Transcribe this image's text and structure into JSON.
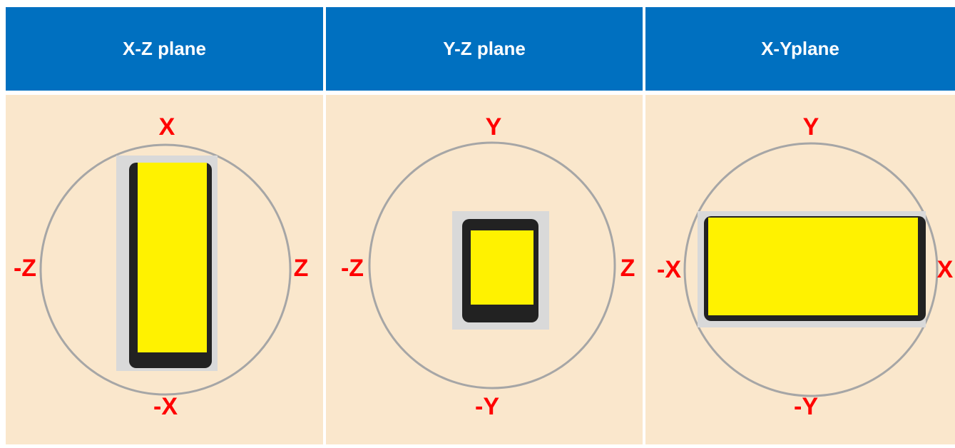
{
  "panels": [
    {
      "header": "X-Z plane",
      "top": "X",
      "bottom": "-X",
      "left": "-Z",
      "right": "Z"
    },
    {
      "header": "Y-Z plane",
      "top": "Y",
      "bottom": "-Y",
      "left": "-Z",
      "right": "Z"
    },
    {
      "header": "X-Yplane",
      "top": "Y",
      "bottom": "-Y",
      "left": "-X",
      "right": "X"
    }
  ]
}
